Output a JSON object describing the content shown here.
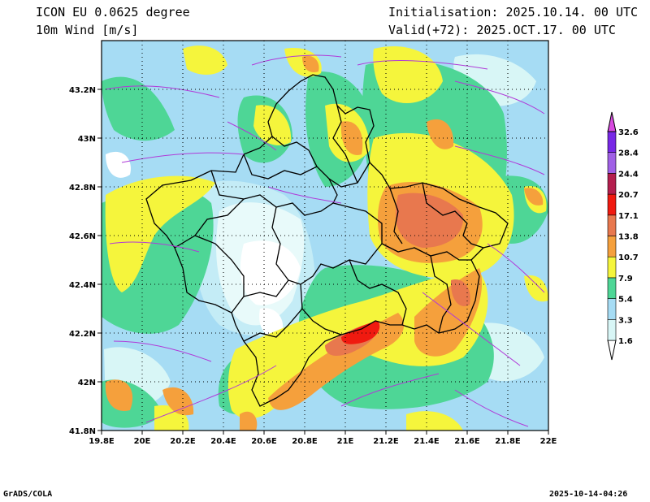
{
  "header": {
    "model": "ICON EU 0.0625 degree",
    "field": "10m Wind [m/s]",
    "init": "Initialisation: 2025.10.14. 00 UTC",
    "valid": "Valid(+72): 2025.OCT.17. 00 UTC"
  },
  "footer": {
    "credit": "GrADS/COLA",
    "timestamp": "2025-10-14-04:26"
  },
  "chart_data": {
    "type": "heatmap",
    "x_ticks": [
      "19.8E",
      "20E",
      "20.2E",
      "20.4E",
      "20.6E",
      "20.8E",
      "21E",
      "21.2E",
      "21.4E",
      "21.6E",
      "21.8E",
      "22E"
    ],
    "y_ticks": [
      "43.2N",
      "43N",
      "42.8N",
      "42.6N",
      "42.4N",
      "42.2N",
      "42N",
      "41.8N"
    ],
    "xlim": [
      19.8,
      22.0
    ],
    "ylim": [
      41.8,
      43.4
    ],
    "grid": true,
    "colorbar": {
      "levels": [
        "1.6",
        "3.3",
        "5.4",
        "7.9",
        "10.7",
        "13.8",
        "17.1",
        "20.7",
        "24.4",
        "28.4",
        "32.6"
      ],
      "colors": [
        "#d8f6f6",
        "#a6dcf4",
        "#4ed696",
        "#f5f53c",
        "#f5a03c",
        "#e8784e",
        "#f01a10",
        "#b41e4e",
        "#a060e6",
        "#7828e6",
        "#5a00c8",
        "#d84ae0"
      ]
    },
    "features": [
      "wind speed shading",
      "streamlines (purple)",
      "administrative boundaries (black)"
    ]
  }
}
